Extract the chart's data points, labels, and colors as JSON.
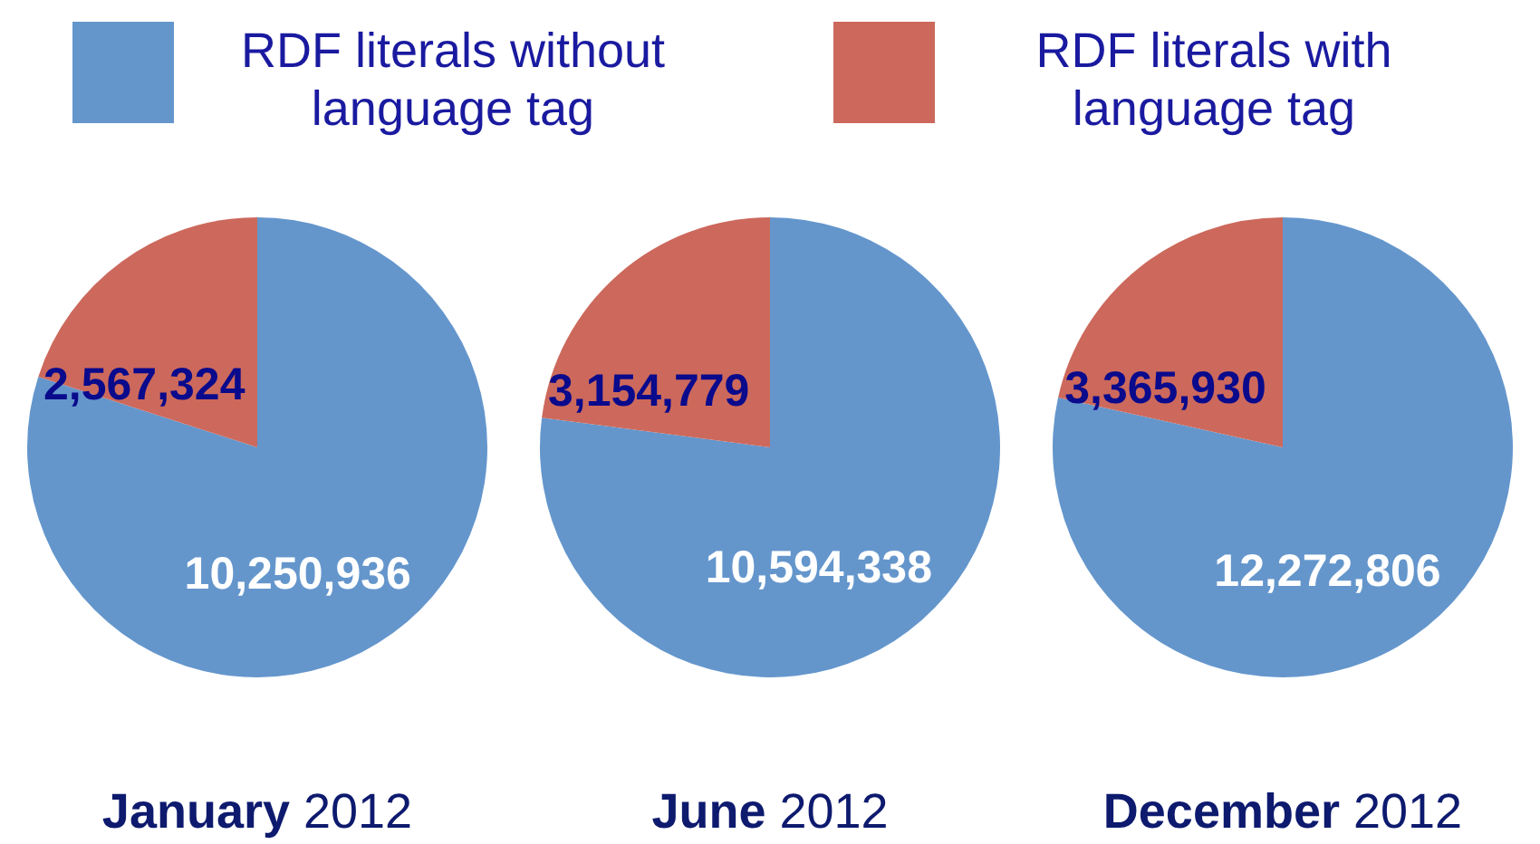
{
  "chart_data": [
    {
      "type": "pie",
      "title": "January 2012",
      "categories": [
        "RDF literals without language tag",
        "RDF literals with language tag"
      ],
      "values": [
        10250936,
        2567324
      ],
      "value_labels": [
        "10,250,936",
        "2,567,324"
      ],
      "colors": [
        "#6496cc",
        "#cc695c"
      ],
      "legend": "top"
    },
    {
      "type": "pie",
      "title": "June 2012",
      "values": [
        10594338,
        3154779
      ],
      "value_labels": [
        "10,594,338",
        "3,154,779"
      ],
      "colors": [
        "#6496cc",
        "#cc695c"
      ]
    },
    {
      "type": "pie",
      "title": "December 2012",
      "values": [
        12272806,
        3365930
      ],
      "value_labels": [
        "12,272,806",
        "3,365,930"
      ],
      "colors": [
        "#6496cc",
        "#cc695c"
      ]
    }
  ]
}
